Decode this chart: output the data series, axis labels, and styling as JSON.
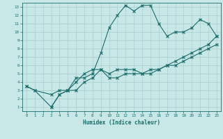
{
  "xlabel": "Humidex (Indice chaleur)",
  "bg_color": "#c8e8e8",
  "line_color": "#1a6b6b",
  "grid_color": "#a8cccc",
  "xlim": [
    -0.5,
    23.5
  ],
  "ylim": [
    0.5,
    13.5
  ],
  "xticks": [
    0,
    1,
    2,
    3,
    4,
    5,
    6,
    7,
    8,
    9,
    10,
    11,
    12,
    13,
    14,
    15,
    16,
    17,
    18,
    19,
    20,
    21,
    22,
    23
  ],
  "yticks": [
    1,
    2,
    3,
    4,
    5,
    6,
    7,
    8,
    9,
    10,
    11,
    12,
    13
  ],
  "line1_x": [
    0,
    1,
    3,
    4,
    5,
    6,
    7,
    8,
    9,
    10,
    11,
    12,
    13,
    14,
    15,
    16,
    17,
    18,
    19,
    20,
    21,
    22,
    23
  ],
  "line1_y": [
    3.5,
    3.0,
    2.5,
    3.0,
    3.0,
    4.5,
    4.5,
    5.0,
    7.5,
    10.5,
    12.0,
    13.2,
    12.5,
    13.2,
    13.2,
    11.0,
    9.5,
    10.0,
    10.0,
    10.5,
    11.5,
    11.0,
    9.5
  ],
  "line2_x": [
    0,
    1,
    3,
    4,
    5,
    6,
    7,
    8,
    9,
    10,
    11,
    12,
    13,
    14,
    15,
    16,
    17,
    18,
    19,
    20,
    21,
    22,
    23
  ],
  "line2_y": [
    3.5,
    3.0,
    1.0,
    2.5,
    3.0,
    4.0,
    5.0,
    5.5,
    5.5,
    4.5,
    4.5,
    5.0,
    5.0,
    5.0,
    5.0,
    5.5,
    6.0,
    6.5,
    7.0,
    7.5,
    8.0,
    8.5,
    9.5
  ],
  "line3_x": [
    3,
    4,
    5,
    6,
    7,
    8,
    9,
    10,
    11,
    12,
    13,
    14,
    15,
    16,
    17,
    18,
    19,
    20,
    21,
    22,
    23
  ],
  "line3_y": [
    1.0,
    2.5,
    3.0,
    3.0,
    4.0,
    4.5,
    5.5,
    5.0,
    5.5,
    5.5,
    5.5,
    5.0,
    5.5,
    5.5,
    6.0,
    6.0,
    6.5,
    7.0,
    7.5,
    8.0,
    8.5
  ]
}
